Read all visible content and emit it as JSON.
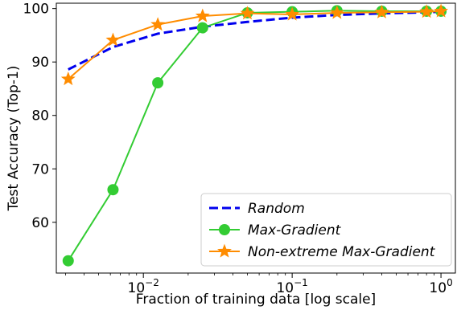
{
  "chart_data": {
    "type": "line",
    "xlabel": "Fraction of training data [log scale]",
    "ylabel": "Test Accuracy (Top-1)",
    "xscale": "log",
    "xlim": [
      0.0026,
      1.25
    ],
    "ylim": [
      50.5,
      101
    ],
    "yticks": [
      60,
      70,
      80,
      90,
      100
    ],
    "xticks": [
      {
        "value": 0.01,
        "base": "10",
        "exp": "−2"
      },
      {
        "value": 0.1,
        "base": "10",
        "exp": "−1"
      },
      {
        "value": 1,
        "base": "10",
        "exp": "0"
      }
    ],
    "grid": false,
    "legend_position": "lower-right",
    "series": [
      {
        "name": "Random",
        "color": "#0000ee",
        "style": "dashed",
        "marker": "none",
        "x": [
          0.003125,
          0.00625,
          0.0125,
          0.025,
          0.05,
          0.1,
          0.2,
          0.4,
          0.8,
          1.0
        ],
        "y": [
          88.6,
          92.8,
          95.3,
          96.6,
          97.5,
          98.3,
          98.8,
          99.1,
          99.3,
          99.4
        ]
      },
      {
        "name": "Max-Gradient",
        "color": "#33cc33",
        "style": "solid",
        "marker": "circle",
        "x": [
          0.003125,
          0.00625,
          0.0125,
          0.025,
          0.05,
          0.1,
          0.2,
          0.4,
          0.8,
          1.0
        ],
        "y": [
          52.8,
          66.1,
          86.1,
          96.4,
          99.2,
          99.4,
          99.6,
          99.5,
          99.5,
          99.5
        ]
      },
      {
        "name": "Non-extreme Max-Gradient",
        "color": "#ff8c00",
        "style": "solid",
        "marker": "star",
        "x": [
          0.003125,
          0.00625,
          0.0125,
          0.025,
          0.05,
          0.1,
          0.2,
          0.4,
          0.8,
          1.0
        ],
        "y": [
          86.8,
          94.1,
          97.0,
          98.6,
          99.1,
          98.9,
          99.2,
          99.3,
          99.4,
          99.5
        ]
      }
    ]
  }
}
